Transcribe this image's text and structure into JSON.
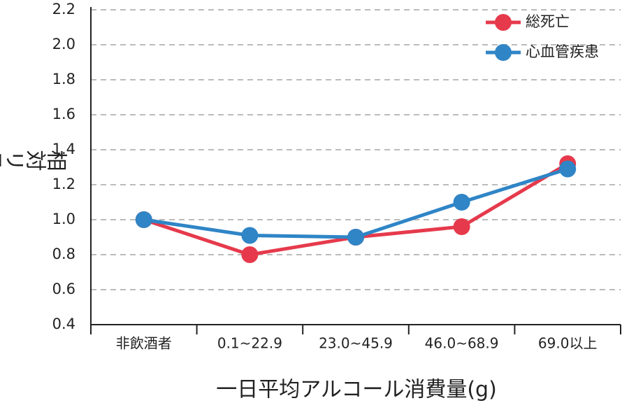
{
  "chart_data": {
    "type": "line",
    "x_label": "一日平均アルコール消費量(g)",
    "y_label": "相対リスク",
    "categories": [
      "非飲酒者",
      "0.1~22.9",
      "23.0~45.9",
      "46.0~68.9",
      "69.0以上"
    ],
    "series": [
      {
        "name": "総死亡",
        "color": "#e63a4c",
        "values": [
          1.0,
          0.8,
          0.9,
          0.96,
          1.32
        ]
      },
      {
        "name": "心血管疾患",
        "color": "#2f85c6",
        "values": [
          1.0,
          0.91,
          0.9,
          1.1,
          1.29
        ]
      }
    ],
    "ylim": [
      0.4,
      2.2
    ],
    "yticks": [
      0.4,
      0.6,
      0.8,
      {
        "value": 1,
        "label": "1.0"
      },
      1.2,
      1.4,
      1.6,
      1.8,
      {
        "value": 2,
        "label": "2.0"
      },
      2.2
    ],
    "grid": true,
    "legend": "top-right"
  }
}
